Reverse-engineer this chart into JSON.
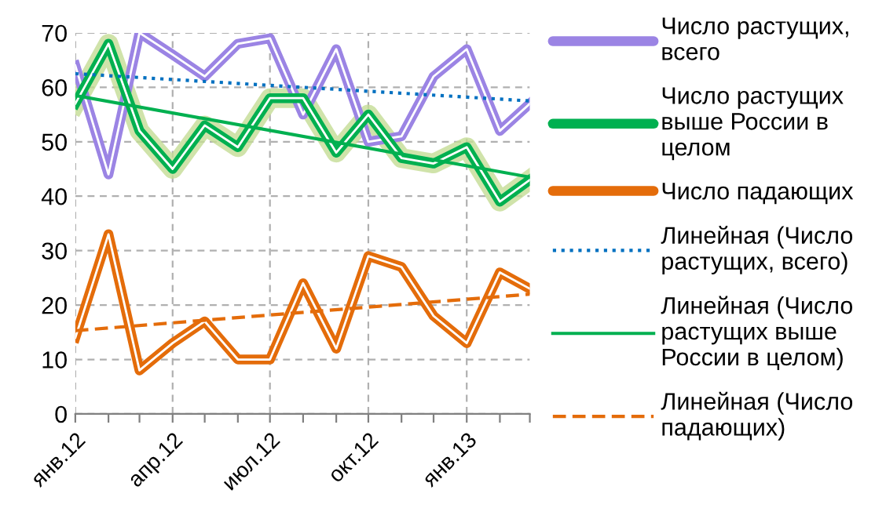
{
  "chart_data": {
    "type": "line",
    "x": [
      "2012-01",
      "2012-02",
      "2012-03",
      "2012-04",
      "2012-05",
      "2012-06",
      "2012-07",
      "2012-08",
      "2012-09",
      "2012-10",
      "2012-11",
      "2012-12",
      "2013-01",
      "2013-02",
      "2013-03"
    ],
    "series": [
      {
        "name": "Число растущих,\nвсего",
        "color": "#9b84e4",
        "values": [
          64,
          44,
          70,
          66,
          62,
          68,
          69,
          55,
          67,
          50,
          51,
          62,
          67,
          52,
          57
        ]
      },
      {
        "name": "Число растущих\nвыше России в\nцелом",
        "color": "#00b050",
        "values": [
          57,
          68,
          52,
          45,
          53,
          49,
          58,
          58,
          48,
          55,
          47,
          46,
          49,
          39,
          43
        ]
      },
      {
        "name": "Число падающих",
        "color": "#e46c0a",
        "values": [
          14,
          33,
          8,
          13,
          17,
          10,
          10,
          24,
          12,
          29,
          27,
          18,
          13,
          26,
          23
        ]
      },
      {
        "name": "Линейная (Число\nрастущих, всего)",
        "color": "#0070c0",
        "line_style": "dotted",
        "x": [
          "2012-01",
          "2013-03"
        ],
        "values": [
          62.5,
          57.5
        ]
      },
      {
        "name": "Линейная (Число\nрастущих выше\nРоссии в целом)",
        "color": "#00b050",
        "line_style": "solid",
        "x": [
          "2012-01",
          "2013-03"
        ],
        "values": [
          58.5,
          43.5
        ]
      },
      {
        "name": "Линейная (Число\nпадающих)",
        "color": "#e46c0a",
        "line_style": "dashed",
        "x": [
          "2012-01",
          "2013-03"
        ],
        "values": [
          15.3,
          22
        ]
      }
    ],
    "xlim": [
      "2012-01",
      "2013-03"
    ],
    "xticks": [
      {
        "value": "2012-01",
        "label": "янв.12"
      },
      {
        "value": "2012-02",
        "label": null
      },
      {
        "value": "2012-03",
        "label": null
      },
      {
        "value": "2012-04",
        "label": "апр.12"
      },
      {
        "value": "2012-05",
        "label": null
      },
      {
        "value": "2012-06",
        "label": null
      },
      {
        "value": "2012-07",
        "label": "июл.12"
      },
      {
        "value": "2012-08",
        "label": null
      },
      {
        "value": "2012-09",
        "label": null
      },
      {
        "value": "2012-10",
        "label": "окт.12"
      },
      {
        "value": "2012-11",
        "label": null
      },
      {
        "value": "2012-12",
        "label": null
      },
      {
        "value": "2013-01",
        "label": "янв.13"
      },
      {
        "value": "2013-02",
        "label": null
      },
      {
        "value": "2013-03",
        "label": null
      }
    ],
    "ylim": [
      0,
      70
    ],
    "yticks": [
      0,
      10,
      20,
      30,
      40,
      50,
      60,
      70
    ],
    "grid": true,
    "legend": "right",
    "marker": "none"
  }
}
